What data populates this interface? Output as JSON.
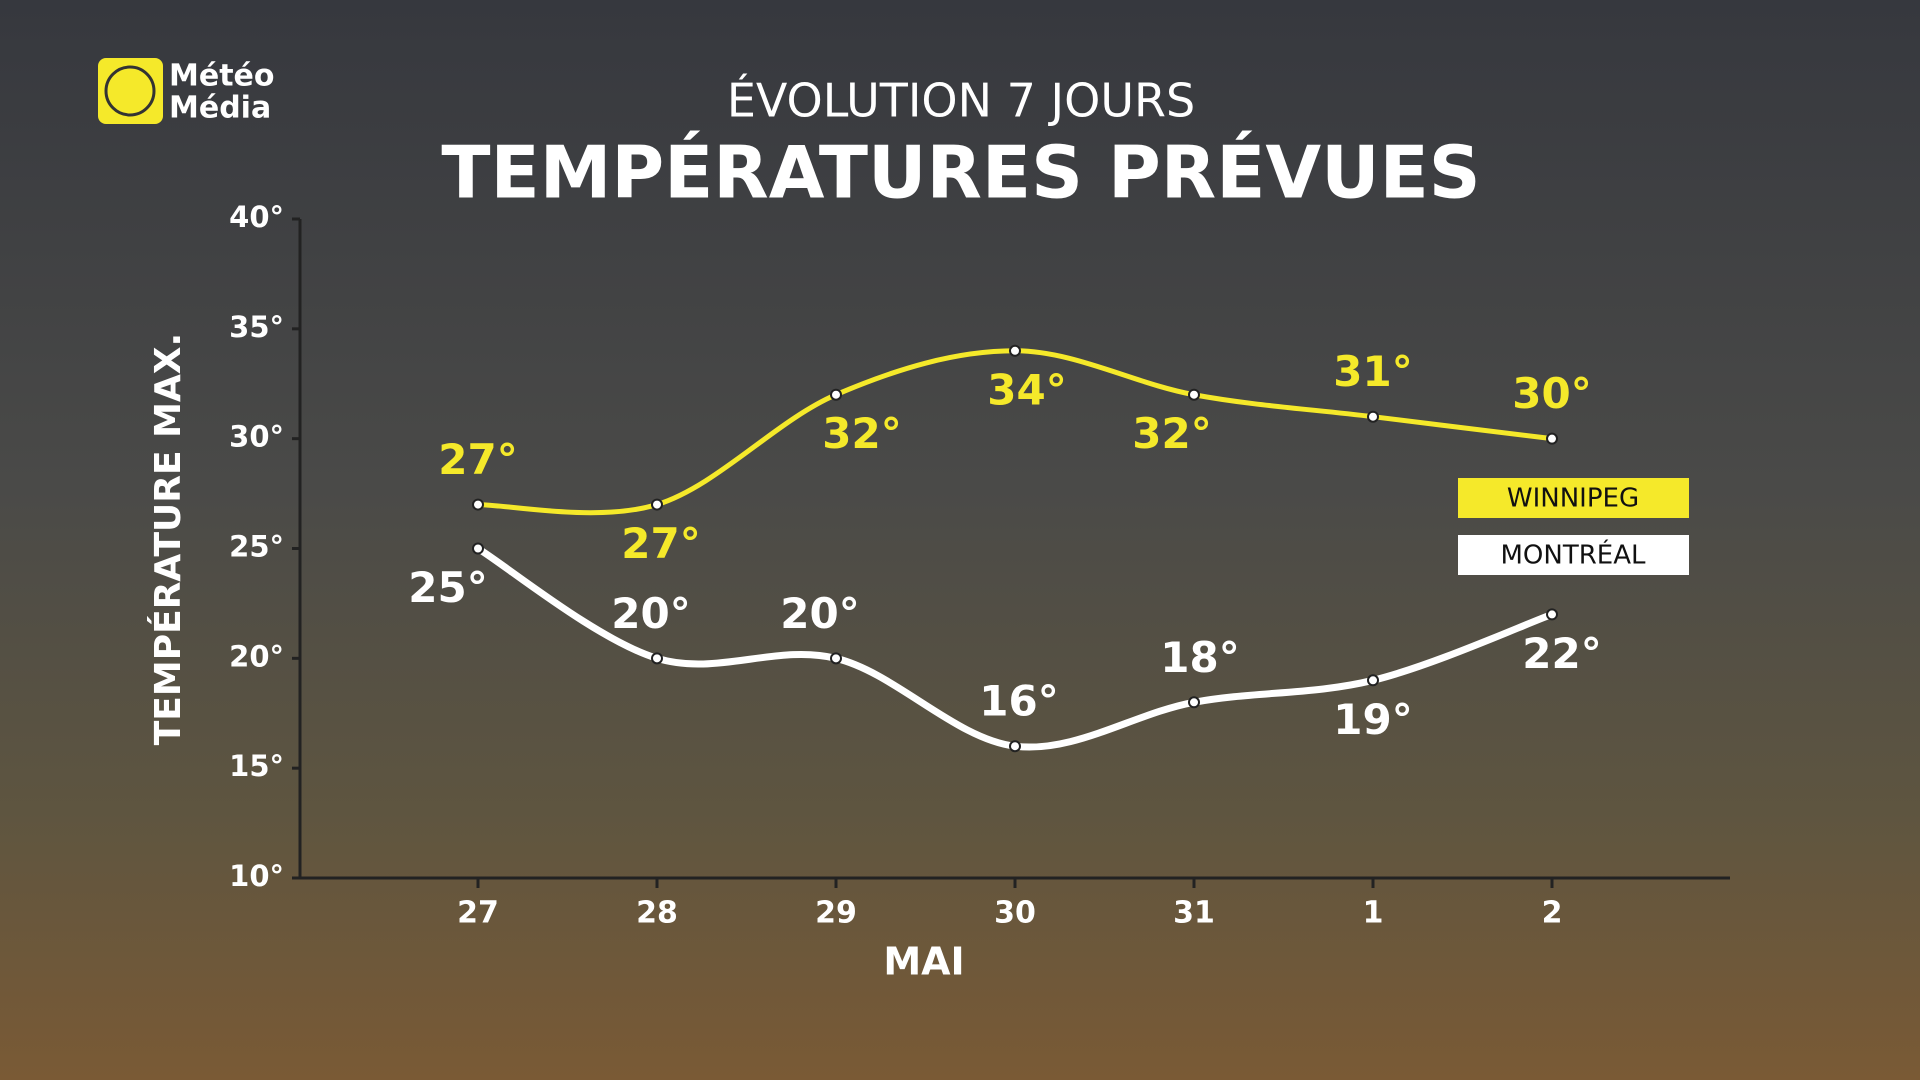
{
  "logo": {
    "line1": "Météo",
    "line2": "Média"
  },
  "chart_data": {
    "type": "line",
    "subtitle": "ÉVOLUTION 7 JOURS",
    "title": "TEMPÉRATURES PRÉVUES",
    "y_label": "TEMPÉRATURE MAX.",
    "x_label": "MAI",
    "categories": [
      "27",
      "28",
      "29",
      "30",
      "31",
      "1",
      "2"
    ],
    "ylim": [
      10,
      40
    ],
    "yticks": [
      {
        "value": 10,
        "label": "10°"
      },
      {
        "value": 15,
        "label": "15°"
      },
      {
        "value": 20,
        "label": "20°"
      },
      {
        "value": 25,
        "label": "25°"
      },
      {
        "value": 30,
        "label": "30°"
      },
      {
        "value": 35,
        "label": "35°"
      },
      {
        "value": 40,
        "label": "40°"
      }
    ],
    "series": [
      {
        "name": "WINNIPEG",
        "color": "#f5e92a",
        "values": [
          27,
          27,
          32,
          34,
          32,
          31,
          30
        ],
        "value_labels": [
          "27°",
          "27°",
          "32°",
          "34°",
          "32°",
          "31°",
          "30°"
        ]
      },
      {
        "name": "MONTRÉAL",
        "color": "#ffffff",
        "values": [
          25,
          20,
          20,
          16,
          18,
          19,
          22
        ],
        "value_labels": [
          "25°",
          "20°",
          "20°",
          "16°",
          "18°",
          "19°",
          "22°"
        ]
      }
    ]
  }
}
